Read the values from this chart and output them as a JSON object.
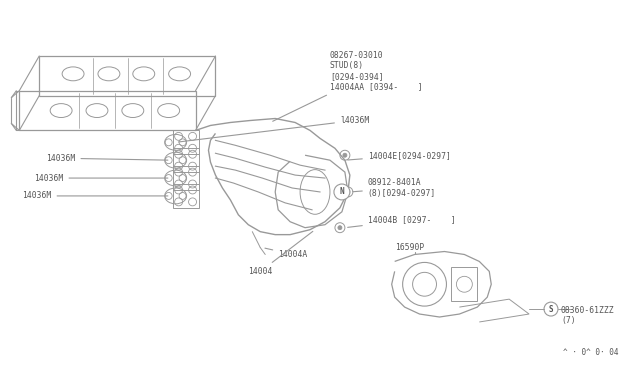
{
  "bg_color": "#ffffff",
  "line_color": "#999999",
  "text_color": "#555555",
  "dark_line": "#888888",
  "fig_width": 6.4,
  "fig_height": 3.72,
  "dpi": 100,
  "labels": {
    "part_08267": "08267-03010\nSTUD(8)\n[0294-0394]\n14004AA [0394-    ]",
    "part_14036M_top": "l4036M",
    "part_14004E": "14004E[0294-0297]",
    "part_08912": "08912-8401A\n(8)[0294-0297]",
    "part_14004B": "14004B [0297-    ]",
    "part_16590P": "16590P",
    "part_14004A": "14004A",
    "part_14004": "14004",
    "part_08360": "08360-61ZZZ\n(7)",
    "watermark": "^ · 0^ 0· 04"
  }
}
